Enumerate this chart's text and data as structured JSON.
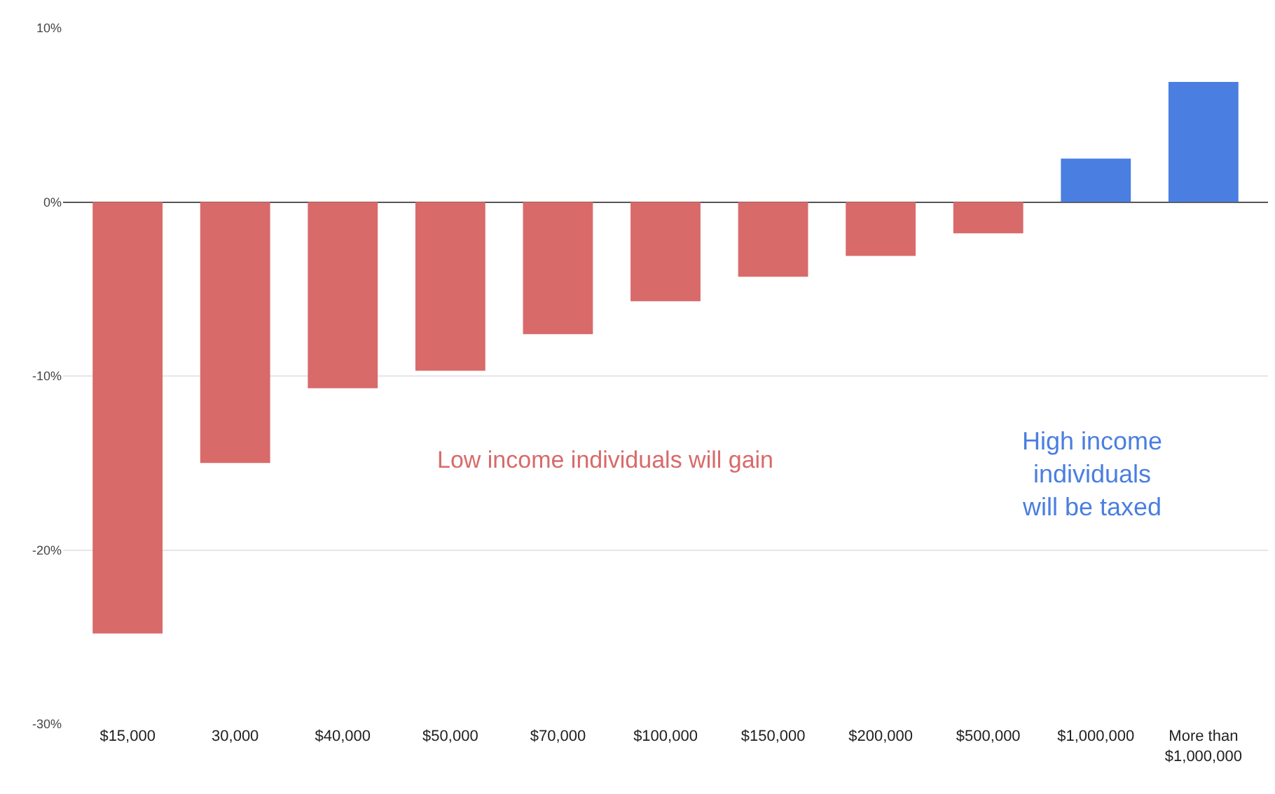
{
  "chart_data": {
    "type": "bar",
    "categories": [
      "$15,000",
      "30,000",
      "$40,000",
      "$50,000",
      "$70,000",
      "$100,000",
      "$150,000",
      "$200,000",
      "$500,000",
      "$1,000,000",
      "More than $1,000,000"
    ],
    "values": [
      -24.8,
      -15.0,
      -10.7,
      -9.7,
      -7.6,
      -5.7,
      -4.3,
      -3.1,
      -1.8,
      2.5,
      6.9
    ],
    "colors": [
      "#d96a6a",
      "#d96a6a",
      "#d96a6a",
      "#d96a6a",
      "#d96a6a",
      "#d96a6a",
      "#d96a6a",
      "#d96a6a",
      "#d96a6a",
      "#4a7ee0",
      "#4a7ee0"
    ],
    "ylim": [
      -30,
      10
    ],
    "yticks": [
      {
        "value": 10,
        "label": "10%"
      },
      {
        "value": 0,
        "label": "0%"
      },
      {
        "value": -10,
        "label": "-10%"
      },
      {
        "value": -20,
        "label": "-20%"
      },
      {
        "value": -30,
        "label": "-30%"
      }
    ],
    "grid": "y",
    "legend": false,
    "annotations": [
      "Low income individuals will gain",
      "High income individuals will be taxed"
    ]
  }
}
